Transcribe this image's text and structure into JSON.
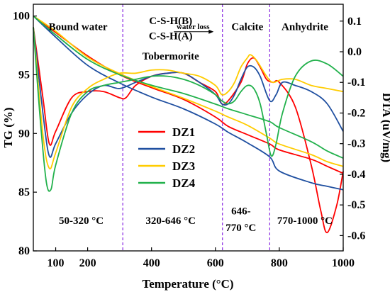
{
  "chart_data": {
    "type": "line",
    "xlabel": "Temperature (°C)",
    "ylabel_left": "TG (%)",
    "ylabel_right": "DTA (uV/mg)",
    "xlim": [
      30,
      1000
    ],
    "ylim_left": [
      80,
      101
    ],
    "ylim_right": [
      -0.65,
      0.155
    ],
    "x_ticks": [
      100,
      200,
      400,
      600,
      800,
      1000
    ],
    "y_ticks_left": [
      80,
      85,
      90,
      95,
      100
    ],
    "y_ticks_right": [
      0.1,
      0.0,
      -0.1,
      -0.2,
      -0.3,
      -0.4,
      -0.5,
      -0.6
    ],
    "legend_position": "center",
    "vlines": [
      310,
      622,
      770
    ],
    "region_labels_top": [
      {
        "text": "Bound water",
        "x": 170,
        "y": 98.8
      },
      {
        "text": "C-S-H(B)",
        "x": 460,
        "y": 99.3
      },
      {
        "text": "C-S-H(A)",
        "x": 460,
        "y": 98.0
      },
      {
        "text": "water loss",
        "x": 530,
        "y": 98.9
      },
      {
        "text": "Tobermorite",
        "x": 460,
        "y": 96.3
      },
      {
        "text": "Calcite",
        "x": 700,
        "y": 98.8
      },
      {
        "text": "Anhydrite",
        "x": 880,
        "y": 98.8
      }
    ],
    "region_labels_bottom": [
      {
        "text": "50-320 °C",
        "x": 180,
        "y": 82.3
      },
      {
        "text": "320-646 °C",
        "x": 460,
        "y": 82.3
      },
      {
        "text": "646-",
        "x": 680,
        "y": 83.1
      },
      {
        "text": "770 °C",
        "x": 680,
        "y": 81.7
      },
      {
        "text": "770-1000 °C",
        "x": 880,
        "y": 82.3
      }
    ],
    "series": [
      {
        "name": "DZ1",
        "color": "#ff0000",
        "tg": {
          "x": [
            30,
            100,
            200,
            300,
            400,
            500,
            600,
            640,
            700,
            770,
            800,
            900,
            950,
            1000
          ],
          "y": [
            100,
            98.6,
            96.6,
            95.0,
            93.9,
            92.9,
            91.4,
            90.6,
            89.9,
            89.1,
            88.6,
            87.8,
            87.2,
            86.6
          ]
        },
        "dta": {
          "x": [
            30,
            60,
            80,
            100,
            150,
            200,
            250,
            300,
            320,
            350,
            400,
            450,
            500,
            550,
            600,
            620,
            640,
            680,
            700,
            720,
            740,
            760,
            780,
            800,
            850,
            900,
            930,
            950,
            980,
            1000
          ],
          "y": [
            0.08,
            -0.15,
            -0.3,
            -0.26,
            -0.15,
            -0.13,
            -0.13,
            -0.15,
            -0.15,
            -0.11,
            -0.08,
            -0.07,
            -0.07,
            -0.1,
            -0.13,
            -0.17,
            -0.16,
            -0.1,
            -0.04,
            -0.02,
            -0.05,
            -0.09,
            -0.1,
            -0.1,
            -0.18,
            -0.37,
            -0.52,
            -0.59,
            -0.5,
            -0.39
          ]
        }
      },
      {
        "name": "DZ2",
        "color": "#1f4fa0",
        "tg": {
          "x": [
            30,
            100,
            200,
            300,
            400,
            500,
            600,
            640,
            700,
            770,
            800,
            900,
            950,
            1000
          ],
          "y": [
            100,
            98.2,
            95.8,
            94.3,
            93.1,
            92.1,
            90.8,
            90.1,
            89.2,
            88.0,
            86.8,
            85.8,
            85.5,
            85.2
          ]
        },
        "dta": {
          "x": [
            30,
            60,
            80,
            100,
            150,
            200,
            250,
            300,
            350,
            400,
            450,
            500,
            550,
            600,
            620,
            640,
            660,
            680,
            700,
            720,
            740,
            770,
            790,
            810,
            850,
            900,
            950,
            1000
          ],
          "y": [
            0.08,
            -0.2,
            -0.34,
            -0.3,
            -0.2,
            -0.14,
            -0.11,
            -0.12,
            -0.1,
            -0.08,
            -0.07,
            -0.07,
            -0.1,
            -0.14,
            -0.17,
            -0.17,
            -0.14,
            -0.09,
            -0.05,
            -0.05,
            -0.08,
            -0.16,
            -0.14,
            -0.1,
            -0.11,
            -0.13,
            -0.17,
            -0.26
          ]
        }
      },
      {
        "name": "DZ3",
        "color": "#ffcc00",
        "tg": {
          "x": [
            30,
            100,
            200,
            300,
            400,
            500,
            600,
            640,
            700,
            770,
            800,
            900,
            950,
            1000
          ],
          "y": [
            100,
            98.7,
            96.5,
            95.1,
            94.0,
            93.0,
            91.9,
            91.4,
            90.7,
            89.6,
            89.1,
            88.2,
            87.6,
            87.2
          ]
        },
        "dta": {
          "x": [
            30,
            60,
            80,
            100,
            150,
            200,
            250,
            300,
            350,
            400,
            450,
            500,
            550,
            600,
            620,
            640,
            660,
            680,
            700,
            710,
            730,
            760,
            780,
            810,
            850,
            900,
            950,
            1000
          ],
          "y": [
            0.08,
            -0.27,
            -0.38,
            -0.33,
            -0.18,
            -0.12,
            -0.09,
            -0.07,
            -0.07,
            -0.06,
            -0.06,
            -0.07,
            -0.08,
            -0.11,
            -0.14,
            -0.13,
            -0.1,
            -0.05,
            -0.02,
            -0.01,
            -0.03,
            -0.08,
            -0.1,
            -0.09,
            -0.09,
            -0.11,
            -0.12,
            -0.13
          ]
        }
      },
      {
        "name": "DZ4",
        "color": "#22b14c",
        "tg": {
          "x": [
            30,
            100,
            200,
            300,
            400,
            500,
            600,
            640,
            700,
            770,
            800,
            900,
            950,
            1000
          ],
          "y": [
            100,
            98.4,
            96.3,
            95.0,
            94.1,
            93.4,
            92.5,
            92.1,
            91.6,
            91.0,
            90.5,
            89.3,
            88.5,
            87.9
          ]
        },
        "dta": {
          "x": [
            30,
            50,
            70,
            85,
            100,
            150,
            200,
            250,
            300,
            350,
            400,
            450,
            500,
            550,
            600,
            620,
            640,
            660,
            680,
            700,
            720,
            740,
            760,
            775,
            790,
            810,
            850,
            900,
            950,
            1000
          ],
          "y": [
            0.08,
            -0.2,
            -0.42,
            -0.45,
            -0.37,
            -0.2,
            -0.13,
            -0.11,
            -0.1,
            -0.09,
            -0.08,
            -0.08,
            -0.09,
            -0.11,
            -0.14,
            -0.16,
            -0.17,
            -0.16,
            -0.13,
            -0.11,
            -0.12,
            -0.17,
            -0.27,
            -0.34,
            -0.3,
            -0.2,
            -0.08,
            -0.03,
            -0.04,
            -0.08
          ]
        }
      }
    ]
  }
}
